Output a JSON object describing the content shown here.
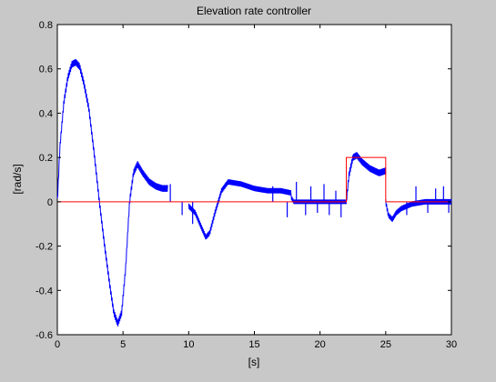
{
  "window": {
    "background": "#c8c8c8"
  },
  "chart_data": {
    "type": "line",
    "title": "Elevation rate controller",
    "xlabel": "[s]",
    "ylabel": "[rad/s]",
    "xlim": [
      0,
      30
    ],
    "ylim": [
      -0.6,
      0.8
    ],
    "xticks": [
      0,
      5,
      10,
      15,
      20,
      25,
      30
    ],
    "yticks": [
      -0.6,
      -0.4,
      -0.2,
      0,
      0.2,
      0.4,
      0.6,
      0.8
    ],
    "xtick_labels": [
      "0",
      "5",
      "10",
      "15",
      "20",
      "25",
      "30"
    ],
    "ytick_labels": [
      "-0.6",
      "-0.4",
      "-0.2",
      "0",
      "0.2",
      "0.4",
      "0.6",
      "0.8"
    ],
    "grid": false,
    "series": [
      {
        "color": "#0000ff",
        "style": "noisy",
        "noise_amplitude": 0.015,
        "x": [
          0,
          0.2,
          0.5,
          0.8,
          1.1,
          1.4,
          1.7,
          2.0,
          2.4,
          2.8,
          3.2,
          3.6,
          4.0,
          4.3,
          4.6,
          4.9,
          5.2,
          5.5,
          5.8,
          6.1,
          6.5,
          7.0,
          7.5,
          8.0,
          8.4
        ],
        "y": [
          0.0,
          0.25,
          0.45,
          0.56,
          0.62,
          0.63,
          0.61,
          0.54,
          0.42,
          0.22,
          0.0,
          -0.2,
          -0.38,
          -0.5,
          -0.55,
          -0.5,
          -0.3,
          0.0,
          0.13,
          0.17,
          0.13,
          0.09,
          0.07,
          0.06,
          0.06
        ]
      },
      {
        "color": "#0000ff",
        "style": "noisy",
        "noise_amplitude": 0.012,
        "x": [
          10.0,
          10.5,
          11.0,
          11.3,
          11.6,
          12.0,
          12.5,
          13.0,
          14.0,
          15.0,
          16.0,
          17.0,
          17.8
        ],
        "y": [
          -0.02,
          -0.05,
          -0.12,
          -0.16,
          -0.14,
          -0.05,
          0.05,
          0.09,
          0.08,
          0.06,
          0.05,
          0.05,
          0.04
        ]
      },
      {
        "color": "#0000ff",
        "style": "noisy",
        "noise_amplitude": 0.01,
        "x": [
          17.8,
          18.0,
          19.0,
          20.0,
          21.0,
          22.0
        ],
        "y": [
          0.02,
          0.0,
          0.0,
          0.0,
          0.0,
          0.0
        ]
      },
      {
        "color": "#0000ff",
        "style": "noisy",
        "noise_amplitude": 0.015,
        "x": [
          22.0,
          22.2,
          22.5,
          22.8,
          23.2,
          23.8,
          24.5,
          25.0
        ],
        "y": [
          0.0,
          0.12,
          0.2,
          0.21,
          0.18,
          0.15,
          0.13,
          0.14
        ]
      },
      {
        "color": "#0000ff",
        "style": "noisy",
        "noise_amplitude": 0.012,
        "x": [
          25.0,
          25.2,
          25.5,
          25.8,
          26.2,
          27.0,
          28.0,
          29.0,
          30.0
        ],
        "y": [
          0.0,
          -0.06,
          -0.08,
          -0.05,
          -0.03,
          -0.01,
          0.0,
          0.0,
          0.0
        ]
      },
      {
        "color": "#0000ff",
        "style": "spikes",
        "x": [
          8.6,
          9.5,
          10.3,
          16.4,
          17.5,
          18.2,
          18.9,
          19.3,
          19.8,
          20.3,
          20.7,
          21.2,
          21.6,
          26.6,
          27.3,
          28.2,
          28.8,
          29.4,
          29.8
        ],
        "y": [
          0.08,
          -0.06,
          -0.1,
          0.07,
          -0.07,
          0.09,
          -0.06,
          0.07,
          -0.05,
          0.08,
          -0.06,
          0.05,
          -0.07,
          -0.06,
          0.07,
          -0.05,
          0.06,
          0.07,
          -0.05
        ]
      },
      {
        "color": "#ff0000",
        "style": "step",
        "x": [
          0,
          22.0,
          22.0,
          25.0,
          25.0,
          30.0
        ],
        "y": [
          0,
          0,
          0.2,
          0.2,
          0,
          0
        ]
      }
    ]
  }
}
